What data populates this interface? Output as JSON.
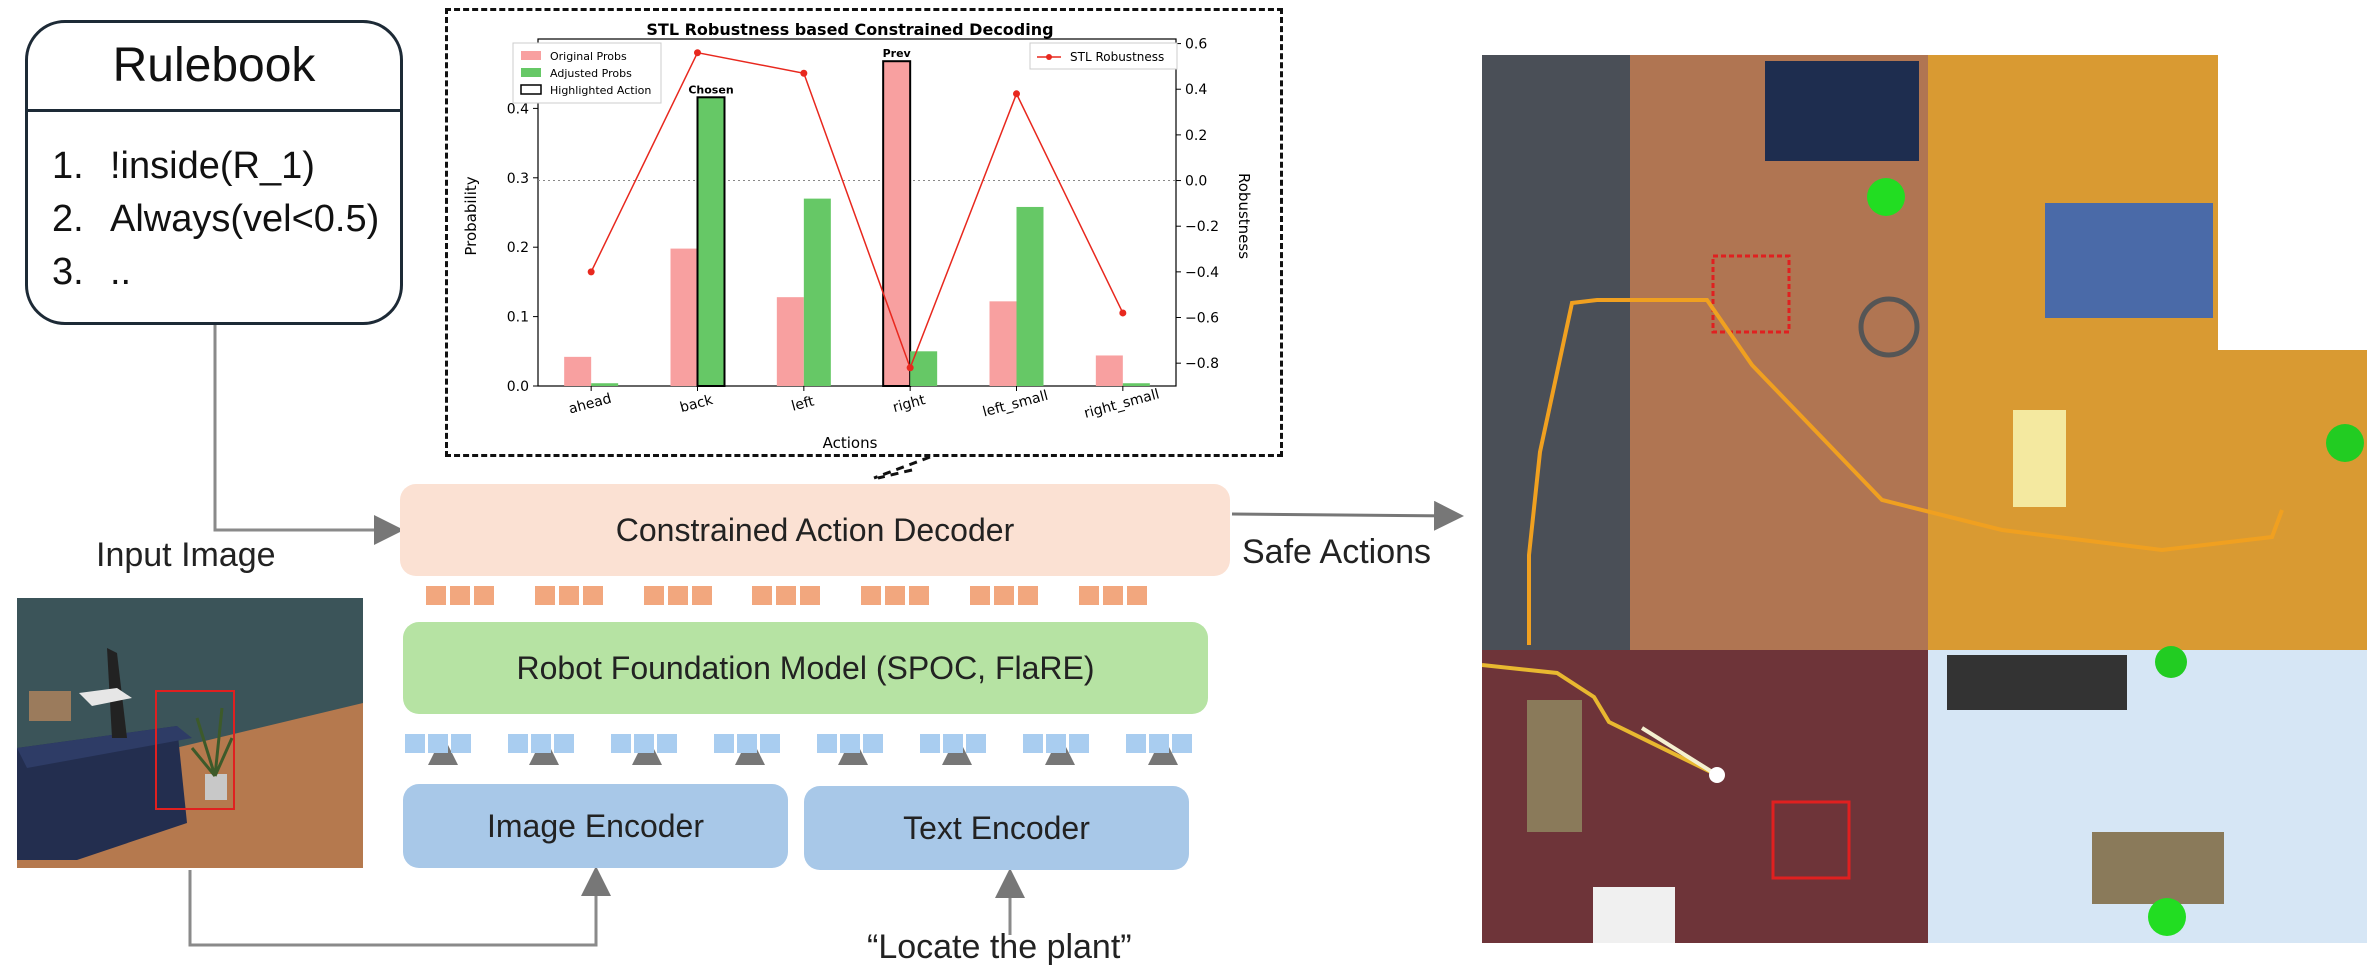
{
  "rulebook": {
    "title": "Rulebook",
    "rules": [
      {
        "num": "1.",
        "text": "!inside(R_1)"
      },
      {
        "num": "2.",
        "text": "Always(vel<0.5)"
      },
      {
        "num": "3.",
        "text": ".."
      }
    ]
  },
  "labels": {
    "input_image": "Input Image",
    "safe_actions": "Safe Actions",
    "instruction": "“Locate the plant”"
  },
  "blocks": {
    "decoder": "Constrained Action Decoder",
    "foundation": "Robot Foundation Model (SPOC, FlaRE)",
    "image_encoder": "Image Encoder",
    "text_encoder": "Text Encoder"
  },
  "chart_data": {
    "type": "bar",
    "title": "STL Robustness based Constrained Decoding",
    "xlabel": "Actions",
    "ylabel": "Probability",
    "y2label": "Robustness",
    "categories": [
      "ahead",
      "back",
      "left",
      "right",
      "left_small",
      "right_small"
    ],
    "series": [
      {
        "name": "Original Probs",
        "color": "#f8a0a0",
        "values": [
          0.042,
          0.198,
          0.128,
          0.468,
          0.122,
          0.044
        ]
      },
      {
        "name": "Adjusted Probs",
        "color": "#66c866",
        "values": [
          0.004,
          0.416,
          0.27,
          0.05,
          0.258,
          0.004
        ]
      },
      {
        "name": "STL Robustness",
        "color": "#e8281e",
        "values": [
          -0.4,
          0.56,
          0.47,
          -0.82,
          0.38,
          -0.58
        ]
      }
    ],
    "legend_highlight": "Highlighted Action",
    "annotations": [
      {
        "category": "back",
        "text": "Chosen"
      },
      {
        "category": "right",
        "text": "Prev"
      }
    ],
    "ylim": [
      0,
      0.5
    ],
    "y2lim": [
      -0.9,
      0.62
    ],
    "yticks": [
      "0.0",
      "0.1",
      "0.2",
      "0.3",
      "0.4"
    ],
    "y2ticks": [
      "0.6",
      "0.4",
      "0.2",
      "0.0",
      "−0.2",
      "−0.4",
      "−0.6",
      "−0.8"
    ],
    "legend_left_position": "top-left",
    "legend_right_position": "top-right"
  },
  "colors": {
    "decoder_bg": "#fbe1d3",
    "foundation_bg": "#b6e3a3",
    "encoder_bg": "#a8c8e8",
    "token_orange": "#f2a77e",
    "token_blue": "#a9cdf0"
  }
}
